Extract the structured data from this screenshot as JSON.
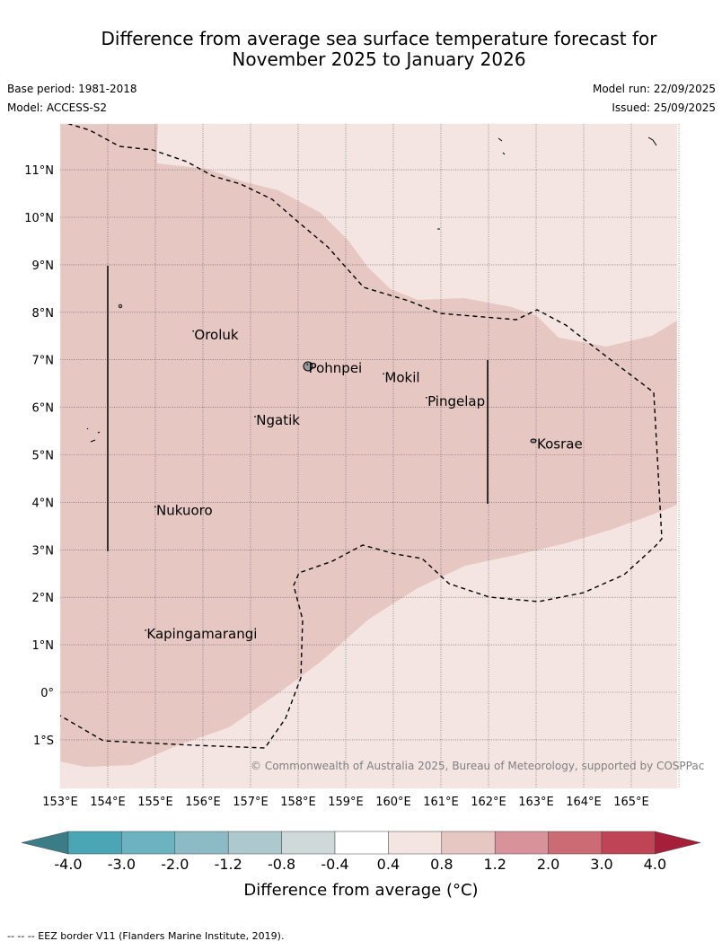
{
  "title": {
    "line1": "Difference from average sea surface temperature forecast for",
    "line2": "November 2025 to January 2026"
  },
  "meta": {
    "base_period": "Base period: 1981-2018",
    "model": "Model: ACCESS-S2",
    "model_run": "Model run: 22/09/2025",
    "issued": "Issued: 25/09/2025"
  },
  "map": {
    "lon_labels": [
      "153°E",
      "154°E",
      "155°E",
      "156°E",
      "157°E",
      "158°E",
      "159°E",
      "160°E",
      "161°E",
      "162°E",
      "163°E",
      "164°E",
      "165°E"
    ],
    "lat_labels": [
      "11°N",
      "10°N",
      "9°N",
      "8°N",
      "7°N",
      "6°N",
      "5°N",
      "4°N",
      "3°N",
      "2°N",
      "1°N",
      "0°",
      "1°S"
    ],
    "places": [
      {
        "name": "Oroluk",
        "lon": 155.8,
        "lat": 7.6
      },
      {
        "name": "Pohnpei",
        "lon": 158.2,
        "lat": 6.9
      },
      {
        "name": "Mokil",
        "lon": 159.8,
        "lat": 6.7
      },
      {
        "name": "Pingelap",
        "lon": 160.7,
        "lat": 6.2
      },
      {
        "name": "Ngatik",
        "lon": 157.1,
        "lat": 5.8
      },
      {
        "name": "Kosrae",
        "lon": 163.0,
        "lat": 5.3
      },
      {
        "name": "Nukuoro",
        "lon": 155.0,
        "lat": 3.9
      },
      {
        "name": "Kapingamarangi",
        "lon": 154.8,
        "lat": 1.3
      }
    ],
    "copyright": "© Commonwealth of Australia 2025, Bureau of Meteorology, supported by COSPPac"
  },
  "colorbar": {
    "labels": [
      "-4.0",
      "-3.0",
      "-2.0",
      "-1.2",
      "-0.8",
      "-0.4",
      "0.4",
      "0.8",
      "1.2",
      "2.0",
      "3.0",
      "4.0"
    ],
    "colors": [
      "#4aa5b5",
      "#6cb2c0",
      "#8cbbc6",
      "#aec9cd",
      "#d0d9da",
      "#ffffff",
      "#f4e5e3",
      "#e7c7c2",
      "#d8939a",
      "#cc6b74",
      "#bf4556"
    ],
    "low_extend_color": "#3a7d87",
    "high_extend_color": "#a51f3a",
    "title": "Difference from average (°C)"
  },
  "footer": "--  --  -- EEZ border V11 (Flanders Marine Institute, 2019)."
}
